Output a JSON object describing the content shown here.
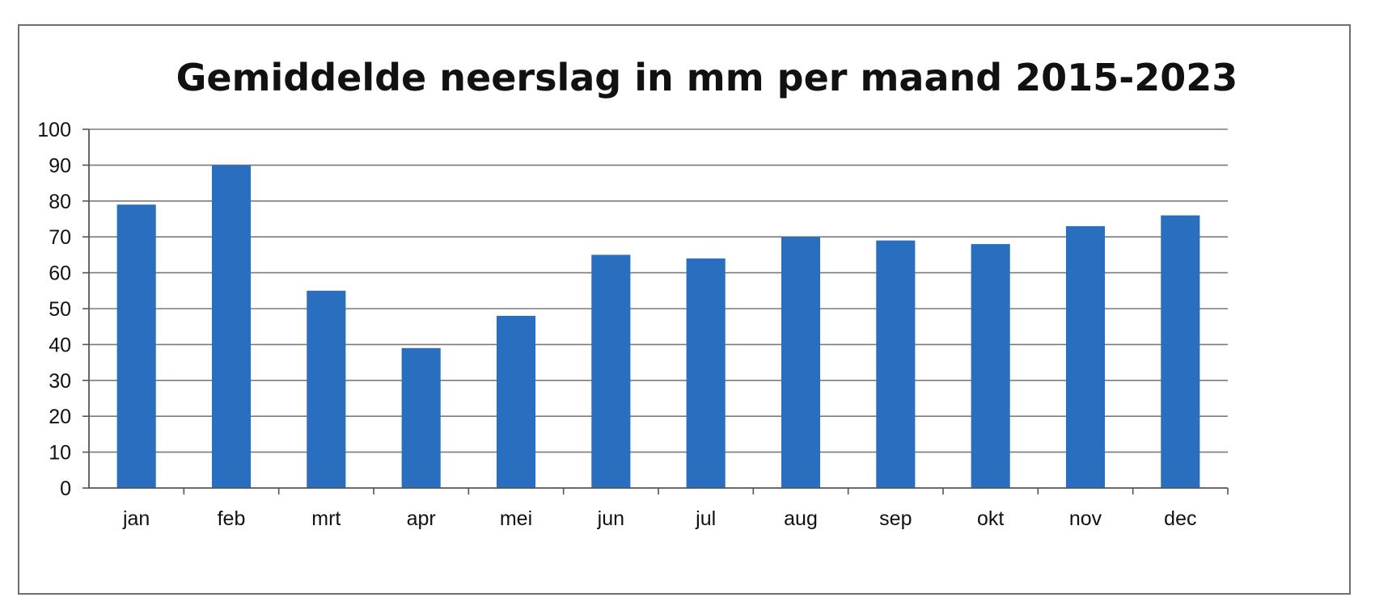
{
  "chart_data": {
    "type": "bar",
    "title": "Gemiddelde neerslag in mm per maand 2015-2023",
    "xlabel": "",
    "ylabel": "",
    "categories": [
      "jan",
      "feb",
      "mrt",
      "apr",
      "mei",
      "jun",
      "jul",
      "aug",
      "sep",
      "okt",
      "nov",
      "dec"
    ],
    "values": [
      79,
      90,
      55,
      39,
      48,
      65,
      64,
      70,
      69,
      68,
      73,
      76
    ],
    "ylim": [
      0,
      100
    ],
    "yticks": [
      "0",
      "10",
      "20",
      "30",
      "40",
      "50",
      "60",
      "70",
      "80",
      "90",
      "100"
    ],
    "grid": true,
    "legend": "none",
    "bar_color": "#2a6ebf",
    "grid_color": "#7a7a7a"
  }
}
